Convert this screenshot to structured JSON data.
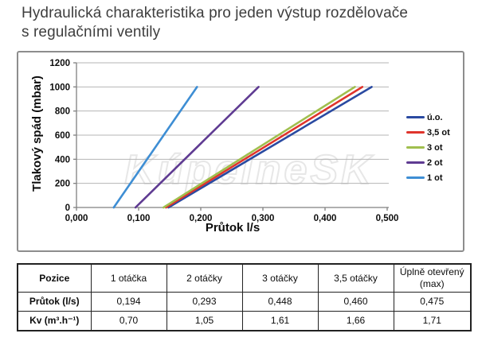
{
  "page": {
    "title_line1": "Hydraulická charakteristika pro jeden výstup rozdělovače",
    "title_line2": "s regulačními ventily"
  },
  "watermark": {
    "text": "KúpelneSK"
  },
  "chart_data": {
    "type": "line",
    "title": "",
    "xlabel": "Průtok l/s",
    "ylabel": "Tlakový spád (mbar)",
    "xlim": [
      0,
      0.503
    ],
    "ylim": [
      0,
      1200
    ],
    "grid": true,
    "legend_position": "right",
    "x_tick_values": [
      0,
      0.1,
      0.2,
      0.3,
      0.4,
      0.5
    ],
    "x_tick_labels": [
      "0,000",
      "0,100",
      "0,200",
      "0,300",
      "0,400",
      "0,500"
    ],
    "y_tick_values": [
      0,
      200,
      400,
      600,
      800,
      1000,
      1200
    ],
    "y_tick_labels": [
      "0",
      "200",
      "400",
      "600",
      "800",
      "1000",
      "1200"
    ],
    "colors": {
      "grid": "#b5b5b5",
      "axis": "#808080",
      "tick_text": "#0c0c0c"
    },
    "series": [
      {
        "name": "ú.o.",
        "color": "#2a4aa1",
        "points": [
          [
            0.148,
            0
          ],
          [
            0.475,
            1000
          ]
        ]
      },
      {
        "name": "3,5 ot",
        "color": "#df342c",
        "points": [
          [
            0.144,
            0
          ],
          [
            0.46,
            1000
          ]
        ]
      },
      {
        "name": "3 ot",
        "color": "#a0bf4e",
        "points": [
          [
            0.14,
            0
          ],
          [
            0.448,
            1000
          ]
        ]
      },
      {
        "name": "2 ot",
        "color": "#5f3b92",
        "points": [
          [
            0.095,
            0
          ],
          [
            0.293,
            1000
          ]
        ]
      },
      {
        "name": "1 ot",
        "color": "#3e8ed4",
        "points": [
          [
            0.06,
            0
          ],
          [
            0.194,
            1000
          ]
        ]
      }
    ]
  },
  "table": {
    "header": [
      "Pozice",
      "1 otáčka",
      "2 otáčky",
      "3 otáčky",
      "3,5 otáčky",
      "Úplně otevřený (max)"
    ],
    "rows": [
      {
        "label": "Průtok (l/s)",
        "values": [
          "0,194",
          "0,293",
          "0,448",
          "0,460",
          "0,475"
        ]
      },
      {
        "label": "Kv (m³.h⁻¹)",
        "values": [
          "0,70",
          "1,05",
          "1,61",
          "1,66",
          "1,71"
        ]
      }
    ]
  }
}
